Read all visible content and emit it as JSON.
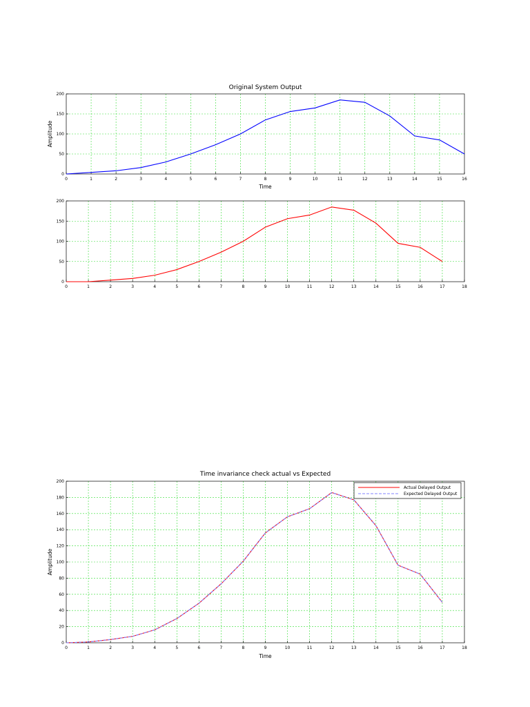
{
  "chart_data": [
    {
      "type": "line",
      "title": "Original System Output",
      "xlabel": "Time",
      "ylabel": "Amplitude",
      "xlim": [
        0,
        16
      ],
      "ylim": [
        0,
        200
      ],
      "xticks": [
        0,
        1,
        2,
        3,
        4,
        5,
        6,
        7,
        8,
        9,
        10,
        11,
        12,
        13,
        14,
        15,
        16
      ],
      "xtick_labels": [
        "0",
        "1",
        "2",
        "3",
        "4",
        "5",
        "6",
        "7",
        "8",
        "9",
        "10",
        "11",
        "12",
        "13",
        "14",
        "15",
        "16"
      ],
      "yticks": [
        0,
        50,
        100,
        150,
        200
      ],
      "ytick_labels": [
        "0",
        "50",
        "100",
        "150",
        "200"
      ],
      "grid": true,
      "series": [
        {
          "name": "Original System Output",
          "color": "#0000ff",
          "dash": "",
          "x": [
            0,
            1,
            2,
            3,
            4,
            5,
            6,
            7,
            8,
            9,
            10,
            11,
            12,
            13,
            14,
            15,
            16
          ],
          "values": [
            0,
            4,
            8,
            16,
            30,
            50,
            73,
            100,
            135,
            156,
            165,
            185,
            179,
            145,
            95,
            85,
            50
          ]
        }
      ]
    },
    {
      "type": "line",
      "title": "",
      "xlabel": "",
      "ylabel": "",
      "xlim": [
        0,
        18
      ],
      "ylim": [
        0,
        200
      ],
      "xticks": [
        0,
        1,
        2,
        3,
        4,
        5,
        6,
        7,
        8,
        9,
        10,
        11,
        12,
        13,
        14,
        15,
        16,
        17,
        18
      ],
      "xtick_labels": [
        "0",
        "1",
        "2",
        "3",
        "4",
        "5",
        "6",
        "7",
        "8",
        "9",
        "10",
        "11",
        "12",
        "13",
        "14",
        "15",
        "16",
        "17",
        "18"
      ],
      "yticks": [
        0,
        50,
        100,
        150,
        200
      ],
      "ytick_labels": [
        "0",
        "50",
        "100",
        "150",
        "200"
      ],
      "grid": true,
      "series": [
        {
          "name": "Delayed Output",
          "color": "#ff0000",
          "dash": "",
          "x": [
            0,
            1,
            2,
            3,
            4,
            5,
            6,
            7,
            8,
            9,
            10,
            11,
            12,
            13,
            14,
            15,
            16,
            17
          ],
          "values": [
            0,
            0,
            4,
            8,
            16,
            30,
            50,
            73,
            100,
            135,
            156,
            165,
            185,
            177,
            145,
            95,
            85,
            50
          ]
        }
      ]
    },
    {
      "type": "line",
      "title": "Time invariance check actual vs Expected",
      "xlabel": "Time",
      "ylabel": "Amplitude",
      "xlim": [
        0,
        18
      ],
      "ylim": [
        0,
        200
      ],
      "xticks": [
        0,
        1,
        2,
        3,
        4,
        5,
        6,
        7,
        8,
        9,
        10,
        11,
        12,
        13,
        14,
        15,
        16,
        17,
        18
      ],
      "xtick_labels": [
        "0",
        "1",
        "2",
        "3",
        "4",
        "5",
        "6",
        "7",
        "8",
        "9",
        "10",
        "11",
        "12",
        "13",
        "14",
        "15",
        "16",
        "17",
        "18"
      ],
      "yticks": [
        0,
        20,
        40,
        60,
        80,
        100,
        120,
        140,
        160,
        180,
        200
      ],
      "ytick_labels": [
        "0",
        "20",
        "40",
        "60",
        "80",
        "100",
        "120",
        "140",
        "160",
        "180",
        "200"
      ],
      "grid": true,
      "legend": "top-right",
      "series": [
        {
          "name": "Actual Delayed Output",
          "color": "#ff0000",
          "dash": "",
          "x": [
            0,
            1,
            2,
            3,
            4,
            5,
            6,
            7,
            8,
            9,
            10,
            11,
            12,
            13,
            14,
            15,
            16,
            17
          ],
          "values": [
            0,
            1,
            4,
            8,
            16,
            30,
            49,
            73,
            101,
            136,
            156,
            166,
            186,
            177,
            145,
            96,
            85,
            50
          ]
        },
        {
          "name": "Expected Delayed Output",
          "color": "#8080ff",
          "dash": "4,2",
          "x": [
            0,
            1,
            2,
            3,
            4,
            5,
            6,
            7,
            8,
            9,
            10,
            11,
            12,
            13,
            14,
            15,
            16,
            17
          ],
          "values": [
            0,
            1,
            4,
            8,
            16,
            30,
            49,
            73,
            101,
            136,
            156,
            166,
            186,
            177,
            145,
            96,
            85,
            50
          ]
        }
      ]
    }
  ]
}
